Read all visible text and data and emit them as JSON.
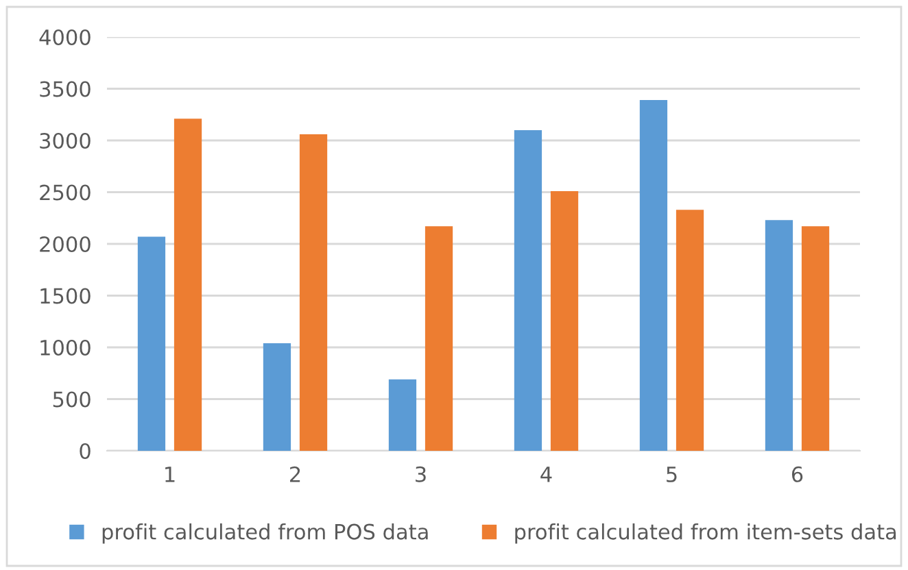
{
  "chart_data": {
    "type": "bar",
    "categories": [
      "1",
      "2",
      "3",
      "4",
      "5",
      "6"
    ],
    "series": [
      {
        "name": "profit calculated from POS data",
        "color": "#5b9bd5",
        "values": [
          2070,
          1040,
          690,
          3100,
          3390,
          2230
        ]
      },
      {
        "name": "profit calculated from item-sets data",
        "color": "#ed7d31",
        "values": [
          3210,
          3060,
          2170,
          2510,
          2330,
          2170
        ]
      }
    ],
    "ylim": [
      0,
      4000
    ],
    "yticks": [
      0,
      500,
      1000,
      1500,
      2000,
      2500,
      3000,
      3500,
      4000
    ],
    "grid": "y",
    "legend": "bottom"
  }
}
